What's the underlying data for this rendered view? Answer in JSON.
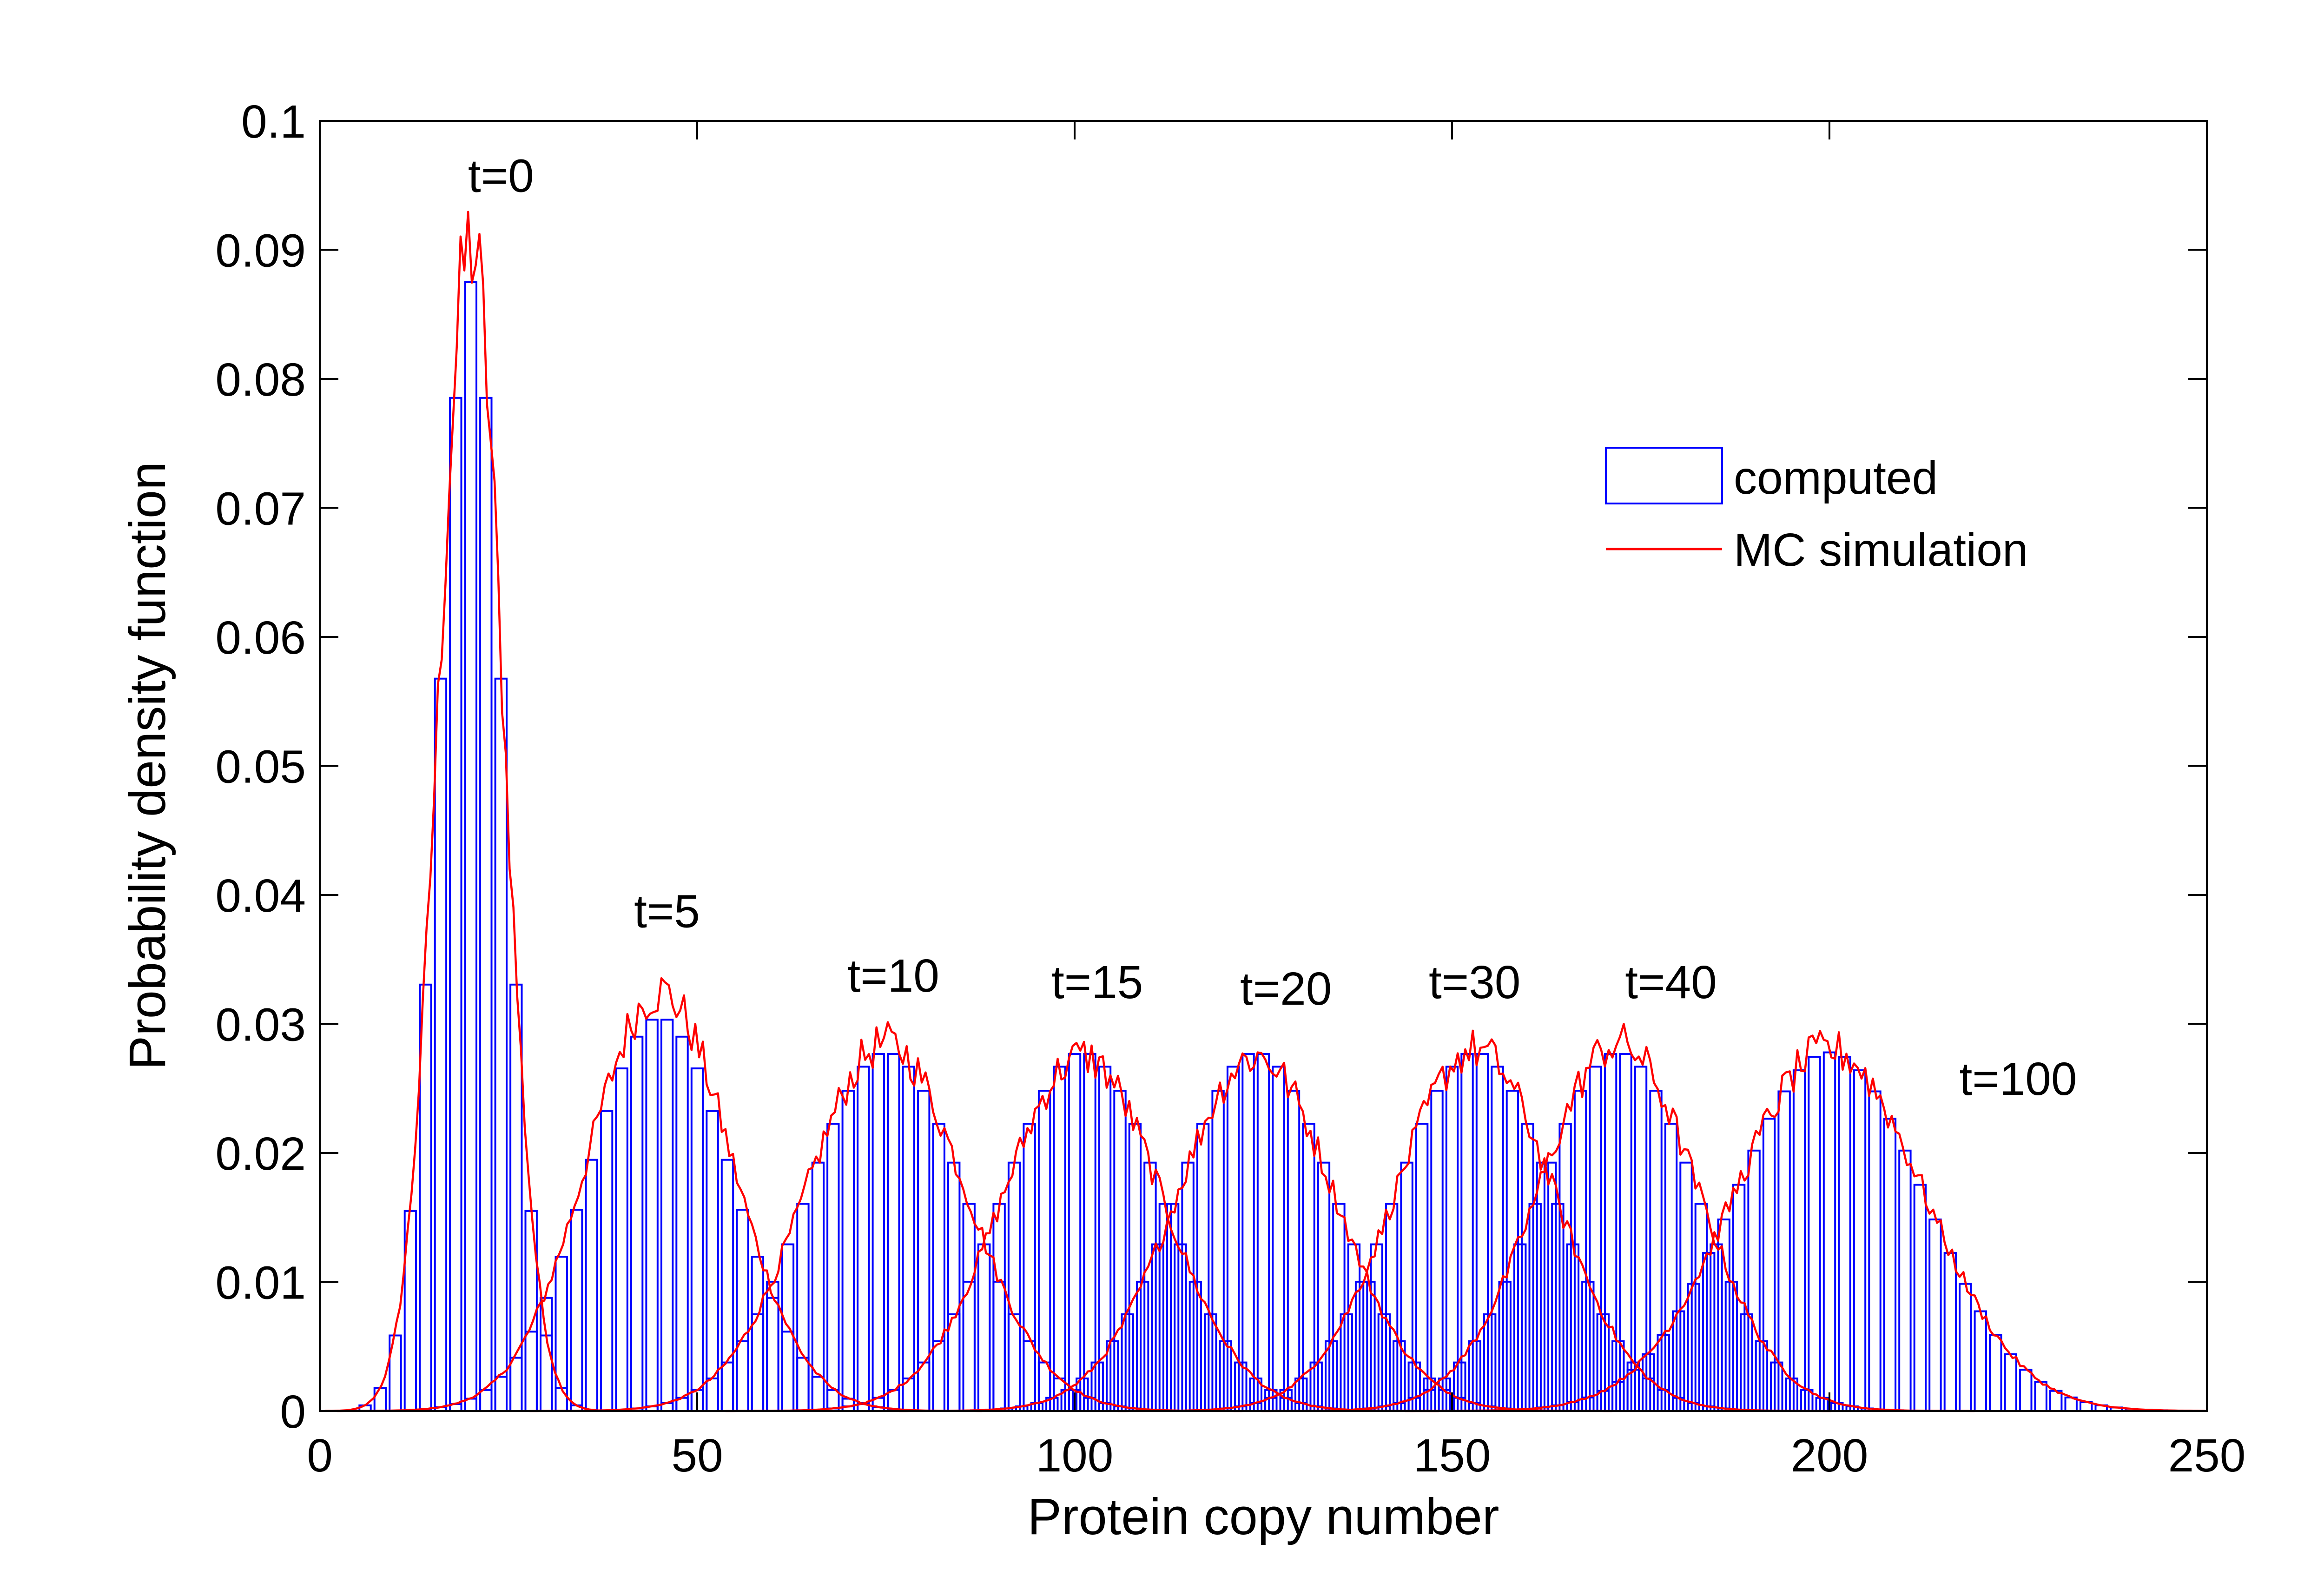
{
  "chart_data": {
    "type": "bar",
    "title": "",
    "xlabel": "Protein copy number",
    "ylabel": "Probability density function",
    "xlim": [
      0,
      250
    ],
    "ylim": [
      0,
      0.1
    ],
    "xticks": [
      0,
      50,
      100,
      150,
      200,
      250
    ],
    "xtick_labels": [
      "0",
      "50",
      "100",
      "150",
      "200",
      "250"
    ],
    "yticks": [
      0,
      0.01,
      0.02,
      0.03,
      0.04,
      0.05,
      0.06,
      0.07,
      0.08,
      0.09,
      0.1
    ],
    "ytick_labels": [
      "0",
      "0.01",
      "0.02",
      "0.03",
      "0.04",
      "0.05",
      "0.06",
      "0.07",
      "0.08",
      "0.09",
      "0.1"
    ],
    "grid": false,
    "bar_width": 1.5,
    "legend": {
      "placement": "top-right",
      "entries": [
        {
          "label": "computed",
          "style": "bar-outline",
          "color": "#0000ff"
        },
        {
          "label": "MC simulation",
          "style": "line",
          "color": "#ff0000"
        }
      ]
    },
    "series": [
      {
        "name": "t=0",
        "label": "t=0",
        "label_pos": [
          24,
          0.0945
        ],
        "mean": 20,
        "sd": 4.3,
        "peak": 0.0875,
        "mc_peak": 0.0905,
        "min": 6,
        "max": 40
      },
      {
        "name": "t=5",
        "label": "t=5",
        "label_pos": [
          46,
          0.0375
        ],
        "mean": 45,
        "sd": 9.5,
        "peak": 0.0305,
        "mc_peak": 0.0325,
        "min": 12,
        "max": 80
      },
      {
        "name": "t=10",
        "label": "t=10",
        "label_pos": [
          76,
          0.0325
        ],
        "mean": 75,
        "sd": 10.5,
        "peak": 0.0278,
        "mc_peak": 0.0285,
        "min": 38,
        "max": 112
      },
      {
        "name": "t=15",
        "label": "t=15",
        "label_pos": [
          103,
          0.032
        ],
        "mean": 101,
        "sd": 10.5,
        "peak": 0.0278,
        "mc_peak": 0.0275,
        "min": 64,
        "max": 138
      },
      {
        "name": "t=20",
        "label": "t=20",
        "label_pos": [
          128,
          0.0315
        ],
        "mean": 124,
        "sd": 10.5,
        "peak": 0.0278,
        "mc_peak": 0.0275,
        "min": 87,
        "max": 161
      },
      {
        "name": "t=30",
        "label": "t=30",
        "label_pos": [
          153,
          0.032
        ],
        "mean": 153,
        "sd": 10.5,
        "peak": 0.0278,
        "mc_peak": 0.028,
        "min": 116,
        "max": 190
      },
      {
        "name": "t=40",
        "label": "t=40",
        "label_pos": [
          179,
          0.032
        ],
        "mean": 172,
        "sd": 10.5,
        "peak": 0.0278,
        "mc_peak": 0.0285,
        "min": 135,
        "max": 209
      },
      {
        "name": "t=100",
        "label": "t=100",
        "label_pos": [
          225,
          0.0245
        ],
        "mean": 200,
        "sd": 12.5,
        "peak": 0.0278,
        "mc_peak": 0.028,
        "min": 156,
        "max": 250
      }
    ]
  },
  "colors": {
    "bars": "#0000ff",
    "mc_line": "#ff0000",
    "axes": "#000000",
    "background": "#ffffff"
  }
}
